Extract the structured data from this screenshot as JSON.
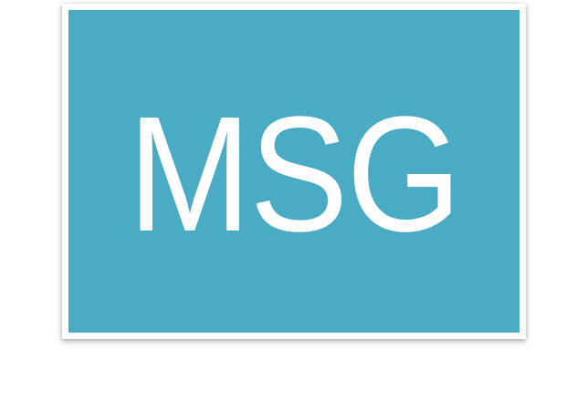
{
  "tile": {
    "label": "MSG",
    "background_color": "#4AABC5",
    "text_color": "#FFFFFF"
  }
}
